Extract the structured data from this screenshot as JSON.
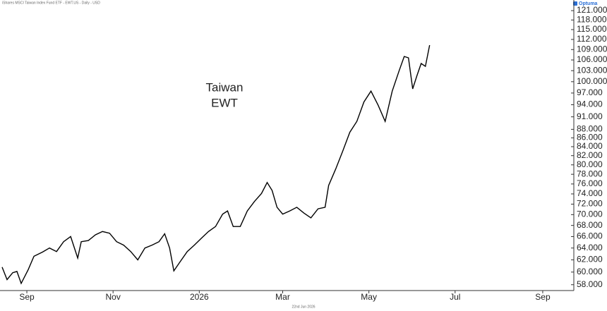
{
  "chart_data": {
    "type": "line",
    "header": "iShares MSCI Taiwan Index Fund ETF - EWT.US - Daily - USD",
    "logo": "Optuma",
    "footer": "22nd Jun 2026",
    "annotation": [
      "Taiwan",
      "EWT"
    ],
    "log_scale": true,
    "color": "#000000",
    "x": [
      -17.5,
      -14,
      -10,
      -7,
      -4,
      1,
      5,
      11,
      16,
      21,
      26,
      31,
      36,
      38.5,
      43.5,
      48.5,
      53.5,
      58.5,
      63.5,
      68.5,
      73.5,
      78.5,
      83.5,
      88.5,
      93.5,
      97.5,
      101,
      104,
      108.5,
      113.5,
      118.5,
      123.5,
      128.5,
      133.5,
      138.5,
      142,
      146,
      151,
      156,
      161,
      166,
      170,
      173.5,
      177,
      181,
      186,
      191,
      196,
      201,
      206,
      211,
      213.5,
      218.5,
      223.5,
      228.5,
      233.5,
      238.5,
      243.5,
      248.5,
      253.5,
      258.5,
      263.5,
      267,
      270,
      273,
      276,
      279,
      282,
      285
    ],
    "values": [
      60.8,
      58.8,
      59.9,
      60.1,
      58.2,
      60.4,
      62.6,
      63.3,
      64.0,
      63.4,
      65.1,
      66.0,
      62.3,
      65.1,
      65.3,
      66.3,
      66.9,
      66.6,
      65.1,
      64.5,
      63.4,
      62.0,
      64.0,
      64.5,
      65.1,
      66.5,
      64.0,
      60.2,
      61.7,
      63.4,
      64.5,
      65.7,
      66.9,
      67.8,
      70.1,
      70.7,
      67.8,
      67.8,
      70.7,
      72.5,
      74.1,
      76.3,
      74.7,
      71.4,
      70.1,
      70.7,
      71.4,
      70.3,
      69.4,
      71.1,
      71.4,
      75.7,
      79.1,
      83.0,
      87.3,
      89.9,
      94.7,
      97.5,
      93.9,
      89.9,
      97.5,
      103.1,
      107.0,
      106.6,
      98.1,
      101.6,
      105.0,
      104.2,
      110.3
    ],
    "xlim": [
      -19,
      387
    ],
    "xticks": [
      {
        "value": 0,
        "label": "Sep"
      },
      {
        "value": 61,
        "label": "Nov"
      },
      {
        "value": 122,
        "label": "2026"
      },
      {
        "value": 181,
        "label": "Mar"
      },
      {
        "value": 242,
        "label": "May"
      },
      {
        "value": 303,
        "label": "Jul"
      },
      {
        "value": 365,
        "label": "Sep"
      }
    ],
    "ylim": [
      57.1,
      124.5
    ],
    "yticks": [
      {
        "value": 121,
        "label": "121.000"
      },
      {
        "value": 118,
        "label": "118.000"
      },
      {
        "value": 115,
        "label": "115.000"
      },
      {
        "value": 112,
        "label": "112.000"
      },
      {
        "value": 109,
        "label": "109.000"
      },
      {
        "value": 106,
        "label": "106.000"
      },
      {
        "value": 103,
        "label": "103.000"
      },
      {
        "value": 100,
        "label": "100.000"
      },
      {
        "value": 97,
        "label": "97.000"
      },
      {
        "value": 94,
        "label": "94.000"
      },
      {
        "value": 91,
        "label": "91.000"
      },
      {
        "value": 88,
        "label": "88.000"
      },
      {
        "value": 86,
        "label": "86.000"
      },
      {
        "value": 84,
        "label": "84.000"
      },
      {
        "value": 82,
        "label": "82.000"
      },
      {
        "value": 80,
        "label": "80.000"
      },
      {
        "value": 78,
        "label": "78.000"
      },
      {
        "value": 76,
        "label": "76.000"
      },
      {
        "value": 74,
        "label": "74.000"
      },
      {
        "value": 72,
        "label": "72.000"
      },
      {
        "value": 70,
        "label": "70.000"
      },
      {
        "value": 68,
        "label": "68.000"
      },
      {
        "value": 66,
        "label": "66.000"
      },
      {
        "value": 64,
        "label": "64.000"
      },
      {
        "value": 62,
        "label": "62.000"
      },
      {
        "value": 60,
        "label": "60.000"
      },
      {
        "value": 58,
        "label": "58.000"
      }
    ]
  }
}
